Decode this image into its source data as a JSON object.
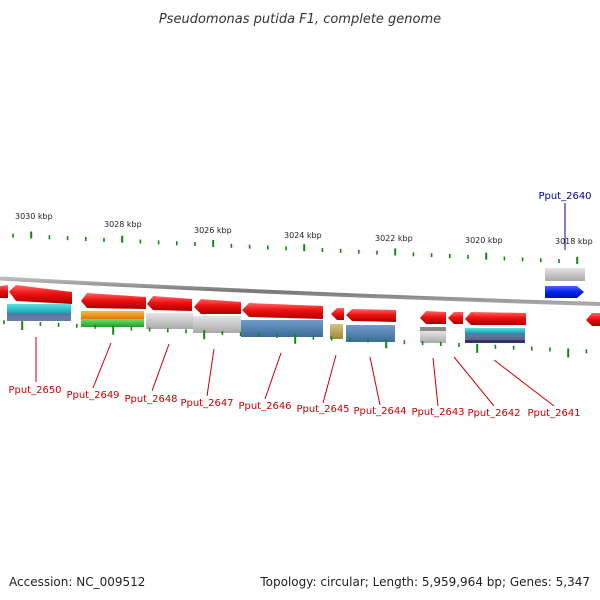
{
  "title": "Pseudomonas putida F1, complete genome",
  "footer": {
    "accession": "Accession: NC_009512",
    "summary": "Topology: circular; Length: 5,959,964 bp; Genes: 5,347"
  },
  "colors": {
    "gene_arrow": "#ee1111",
    "gene_label_default": "#cc0000",
    "gene_label_highlight": "#000099",
    "backbone": "#888888",
    "tick": "#118811",
    "highlight_gene": "#0022dd"
  },
  "kbp_labels": [
    "3030 kbp",
    "3028 kbp",
    "3026 kbp",
    "3024 kbp",
    "3022 kbp",
    "3020 kbp",
    "3018 kbp"
  ],
  "genes": [
    {
      "id": "Pput_2650",
      "strand": "-",
      "color_role": "default"
    },
    {
      "id": "Pput_2649",
      "strand": "-",
      "color_role": "default"
    },
    {
      "id": "Pput_2648",
      "strand": "-",
      "color_role": "default"
    },
    {
      "id": "Pput_2647",
      "strand": "-",
      "color_role": "default"
    },
    {
      "id": "Pput_2646",
      "strand": "-",
      "color_role": "default"
    },
    {
      "id": "Pput_2645",
      "strand": "-",
      "color_role": "default"
    },
    {
      "id": "Pput_2644",
      "strand": "-",
      "color_role": "default"
    },
    {
      "id": "Pput_2643",
      "strand": "-",
      "color_role": "default"
    },
    {
      "id": "Pput_2642",
      "strand": "-",
      "color_role": "default"
    },
    {
      "id": "Pput_2641",
      "strand": "-",
      "color_role": "default"
    },
    {
      "id": "Pput_2640",
      "strand": "+",
      "color_role": "highlight"
    }
  ]
}
